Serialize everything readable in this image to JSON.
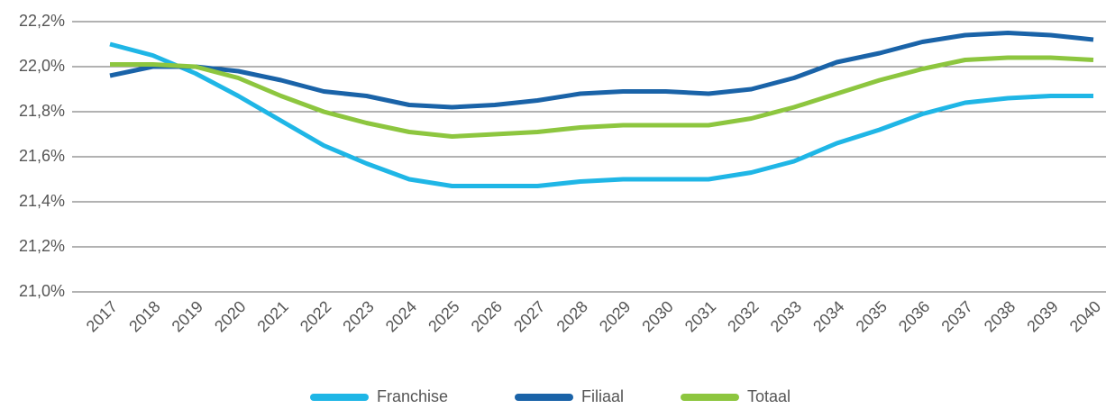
{
  "chart_data": {
    "type": "line",
    "categories": [
      "2017",
      "2018",
      "2019",
      "2020",
      "2021",
      "2022",
      "2023",
      "2024",
      "2025",
      "2026",
      "2027",
      "2028",
      "2029",
      "2030",
      "2031",
      "2032",
      "2033",
      "2034",
      "2035",
      "2036",
      "2037",
      "2038",
      "2039",
      "2040"
    ],
    "series": [
      {
        "name": "Franchise",
        "color": "#1fb6e6",
        "values": [
          22.1,
          22.05,
          21.97,
          21.87,
          21.76,
          21.65,
          21.57,
          21.5,
          21.47,
          21.47,
          21.47,
          21.49,
          21.5,
          21.5,
          21.5,
          21.53,
          21.58,
          21.66,
          21.72,
          21.79,
          21.84,
          21.86,
          21.87,
          21.87
        ]
      },
      {
        "name": "Filiaal",
        "color": "#1a63a8",
        "values": [
          21.96,
          22.0,
          22.0,
          21.98,
          21.94,
          21.89,
          21.87,
          21.83,
          21.82,
          21.83,
          21.85,
          21.88,
          21.89,
          21.89,
          21.88,
          21.9,
          21.95,
          22.02,
          22.06,
          22.11,
          22.14,
          22.15,
          22.14,
          22.12
        ]
      },
      {
        "name": "Totaal",
        "color": "#8dc63f",
        "values": [
          22.01,
          22.01,
          22.0,
          21.95,
          21.87,
          21.8,
          21.75,
          21.71,
          21.69,
          21.7,
          21.71,
          21.73,
          21.74,
          21.74,
          21.74,
          21.77,
          21.82,
          21.88,
          21.94,
          21.99,
          22.03,
          22.04,
          22.04,
          22.03
        ]
      }
    ],
    "ylim": [
      21.0,
      22.2
    ],
    "yticks": [
      {
        "value": 21.0,
        "label": "21,0%"
      },
      {
        "value": 21.2,
        "label": "21,2%"
      },
      {
        "value": 21.4,
        "label": "21,4%"
      },
      {
        "value": 21.6,
        "label": "21,6%"
      },
      {
        "value": 21.8,
        "label": "21,8%"
      },
      {
        "value": 22.0,
        "label": "22,0%"
      },
      {
        "value": 22.2,
        "label": "22,2%"
      }
    ],
    "grid": true,
    "legend": "bottom"
  }
}
